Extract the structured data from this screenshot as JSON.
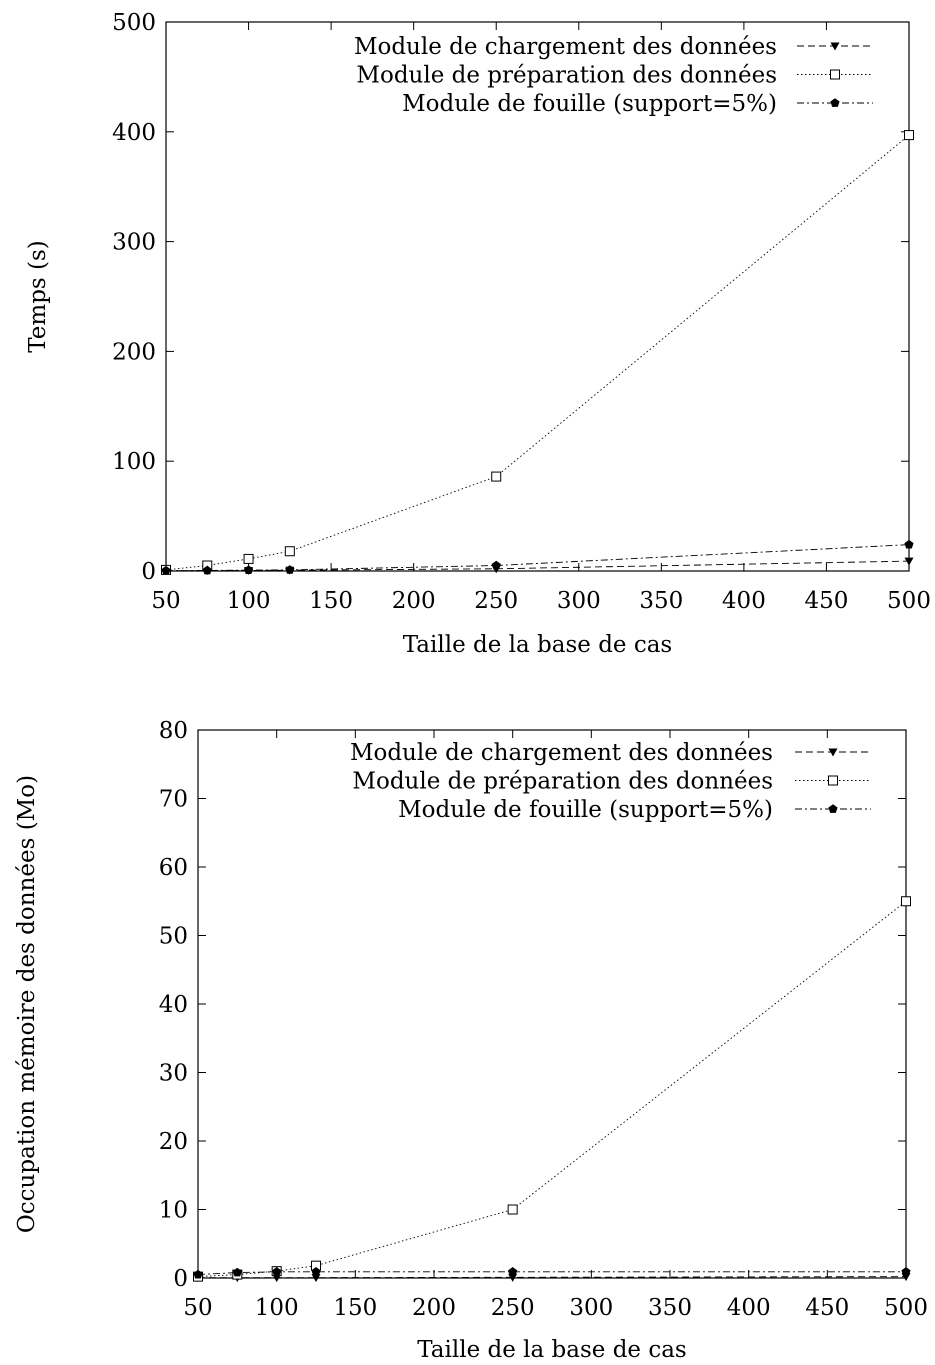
{
  "chart_data": [
    {
      "type": "line",
      "xlabel": "Taille de la base de cas",
      "ylabel": "Temps (s)",
      "xlim": [
        50,
        500
      ],
      "ylim": [
        0,
        500
      ],
      "xticks": [
        50,
        100,
        150,
        200,
        250,
        300,
        350,
        400,
        450,
        500
      ],
      "yticks": [
        0,
        100,
        200,
        300,
        400,
        500
      ],
      "legend_position": "top-right",
      "grid": false,
      "x": [
        50,
        75,
        100,
        125,
        250,
        500
      ],
      "series": [
        {
          "name": "Module de chargement des données",
          "marker": "triangle-down",
          "dash": "dashed",
          "values": [
            0.2,
            0.3,
            0.5,
            0.7,
            2,
            9
          ]
        },
        {
          "name": "Module de préparation des données",
          "marker": "square-open",
          "dash": "dotted",
          "values": [
            1,
            5,
            11,
            18,
            86,
            397
          ]
        },
        {
          "name": "Module de fouille (support=5%)",
          "marker": "pentagon-filled",
          "dash": "dashdot",
          "values": [
            0.3,
            0.5,
            0.8,
            1,
            5,
            24
          ]
        }
      ]
    },
    {
      "type": "line",
      "xlabel": "Taille de la base de cas",
      "ylabel": "Occupation mémoire des données (Mo)",
      "xlim": [
        50,
        500
      ],
      "ylim": [
        0,
        80
      ],
      "xticks": [
        50,
        100,
        150,
        200,
        250,
        300,
        350,
        400,
        450,
        500
      ],
      "yticks": [
        0,
        10,
        20,
        30,
        40,
        50,
        60,
        70,
        80
      ],
      "legend_position": "top-right",
      "grid": false,
      "x": [
        50,
        75,
        100,
        125,
        250,
        500
      ],
      "series": [
        {
          "name": "Module de chargement des données",
          "marker": "triangle-down",
          "dash": "dashed",
          "values": [
            0.05,
            0.05,
            0.05,
            0.05,
            0.1,
            0.2
          ]
        },
        {
          "name": "Module de préparation des données",
          "marker": "square-open",
          "dash": "dotted",
          "values": [
            0.2,
            0.5,
            1,
            1.8,
            10,
            55
          ]
        },
        {
          "name": "Module de fouille (support=5%)",
          "marker": "pentagon-filled",
          "dash": "dashdot",
          "values": [
            0.5,
            0.8,
            0.9,
            0.9,
            0.9,
            0.9
          ]
        }
      ]
    }
  ]
}
